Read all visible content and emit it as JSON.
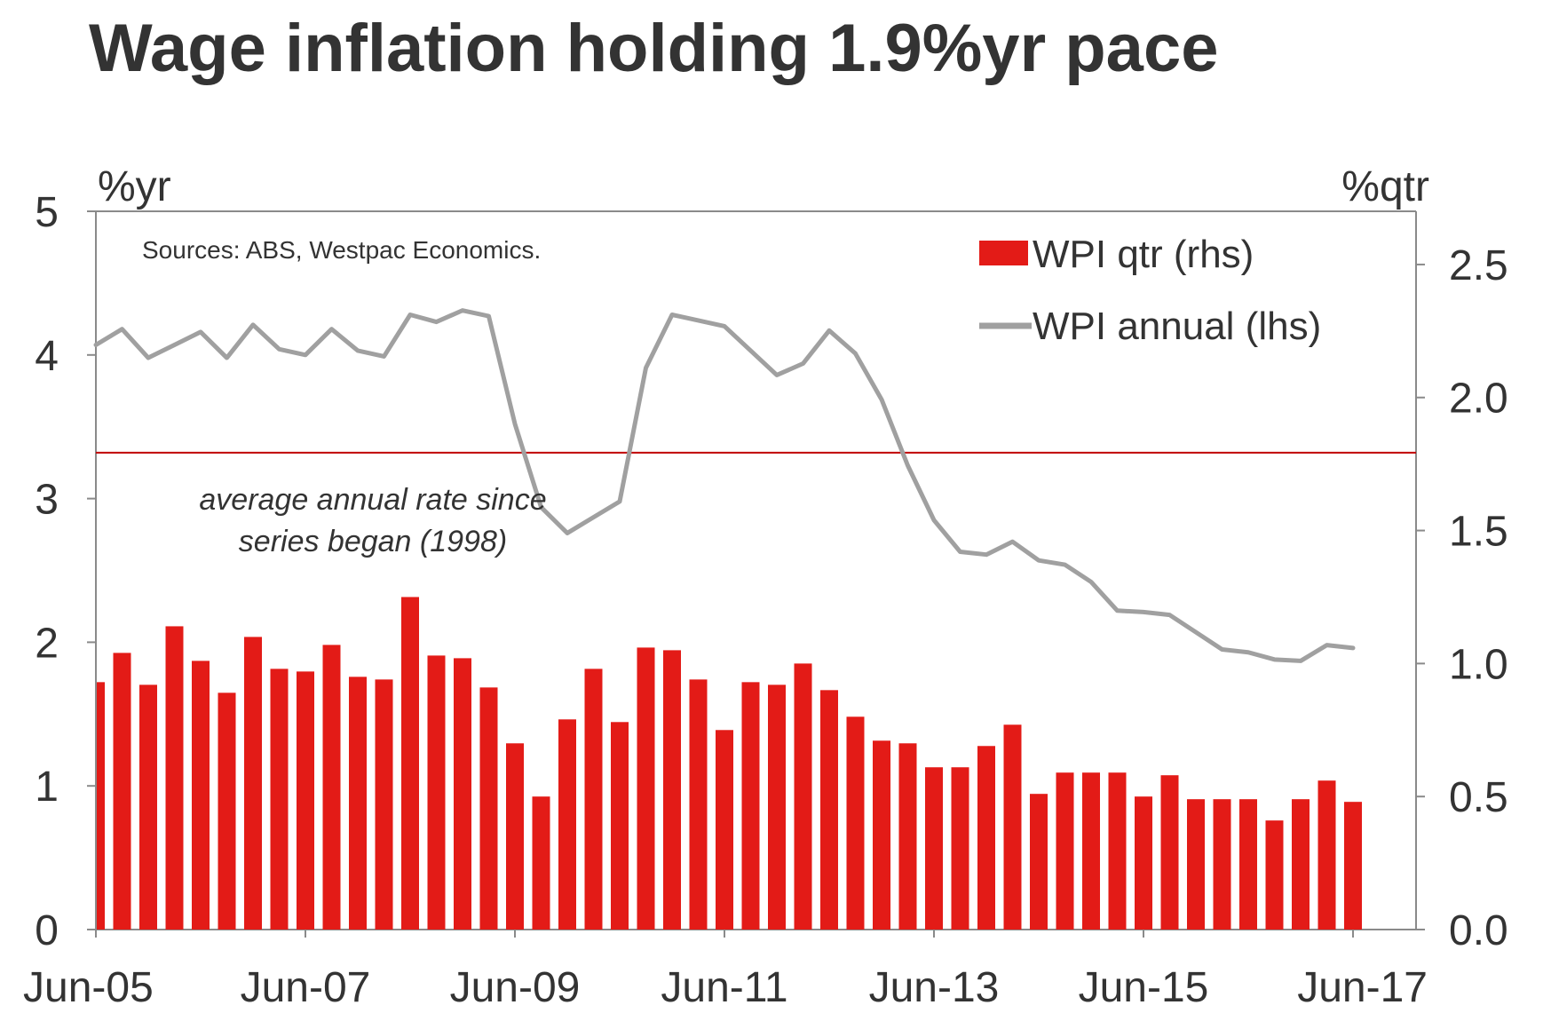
{
  "chart_data": {
    "type": "bar+line",
    "title": "Wage inflation holding 1.9%yr pace",
    "source": "Sources: ABS, Westpac Economics.",
    "left_axis": {
      "unit": "%yr",
      "min": 0,
      "max": 5,
      "ticks": [
        0,
        1,
        2,
        3,
        4,
        5
      ],
      "tick_labels": [
        "0",
        "1",
        "2",
        "3",
        "4",
        "5"
      ]
    },
    "right_axis": {
      "unit": "%qtr",
      "min": 0,
      "max": 2.7,
      "ticks": [
        0,
        0.5,
        1.0,
        1.5,
        2.0,
        2.5
      ],
      "tick_labels": [
        "0.0",
        "0.5",
        "1.0",
        "1.5",
        "2.0",
        "2.5"
      ]
    },
    "x_tick_labels": [
      "Jun-05",
      "Jun-07",
      "Jun-09",
      "Jun-11",
      "Jun-13",
      "Jun-15",
      "Jun-17"
    ],
    "x_tick_indices": [
      0,
      8,
      16,
      24,
      32,
      40,
      48
    ],
    "categories": [
      "Jun-05",
      "Sep-05",
      "Dec-05",
      "Mar-06",
      "Jun-06",
      "Sep-06",
      "Dec-06",
      "Mar-07",
      "Jun-07",
      "Sep-07",
      "Dec-07",
      "Mar-08",
      "Jun-08",
      "Sep-08",
      "Dec-08",
      "Mar-09",
      "Jun-09",
      "Sep-09",
      "Dec-09",
      "Mar-10",
      "Jun-10",
      "Sep-10",
      "Dec-10",
      "Mar-11",
      "Jun-11",
      "Sep-11",
      "Dec-11",
      "Mar-12",
      "Jun-12",
      "Sep-12",
      "Dec-12",
      "Mar-13",
      "Jun-13",
      "Sep-13",
      "Dec-13",
      "Mar-14",
      "Jun-14",
      "Sep-14",
      "Dec-14",
      "Mar-15",
      "Jun-15",
      "Sep-15",
      "Dec-15",
      "Mar-16",
      "Jun-16",
      "Sep-16",
      "Dec-16",
      "Mar-17",
      "Jun-17"
    ],
    "series": [
      {
        "name": "WPI qtr (rhs)",
        "type": "bar",
        "axis": "right",
        "color": "#e31b17",
        "values": [
          0.93,
          1.04,
          0.92,
          1.14,
          1.01,
          0.89,
          1.1,
          0.98,
          0.97,
          1.07,
          0.95,
          0.94,
          1.25,
          1.03,
          1.02,
          0.91,
          0.7,
          0.5,
          0.79,
          0.98,
          0.78,
          1.06,
          1.05,
          0.94,
          0.75,
          0.93,
          0.92,
          1.0,
          0.9,
          0.8,
          0.71,
          0.7,
          0.61,
          0.61,
          0.69,
          0.77,
          0.51,
          0.59,
          0.59,
          0.59,
          0.5,
          0.58,
          0.49,
          0.49,
          0.49,
          0.41,
          0.49,
          0.56,
          0.48
        ]
      },
      {
        "name": "WPI annual (lhs)",
        "type": "line",
        "axis": "left",
        "color": "#a0a0a0",
        "values": [
          4.07,
          4.18,
          3.98,
          4.07,
          4.16,
          3.98,
          4.21,
          4.04,
          4.0,
          4.18,
          4.03,
          3.99,
          4.28,
          4.23,
          4.31,
          4.27,
          3.52,
          2.94,
          2.76,
          2.87,
          2.98,
          3.91,
          4.28,
          4.24,
          4.2,
          4.03,
          3.86,
          3.94,
          4.17,
          4.01,
          3.69,
          3.23,
          2.85,
          2.63,
          2.61,
          2.7,
          2.57,
          2.54,
          2.42,
          2.22,
          2.21,
          2.19,
          2.07,
          1.95,
          1.93,
          1.88,
          1.87,
          1.98,
          1.96
        ]
      }
    ],
    "reference_line": {
      "axis": "left",
      "value": 3.32,
      "color": "#c00000",
      "label_line1": "average annual rate since",
      "label_line2": "series began (1998)"
    },
    "legend": {
      "position": "top-right",
      "entries": [
        "WPI qtr (rhs)",
        "WPI annual (lhs)"
      ]
    }
  }
}
